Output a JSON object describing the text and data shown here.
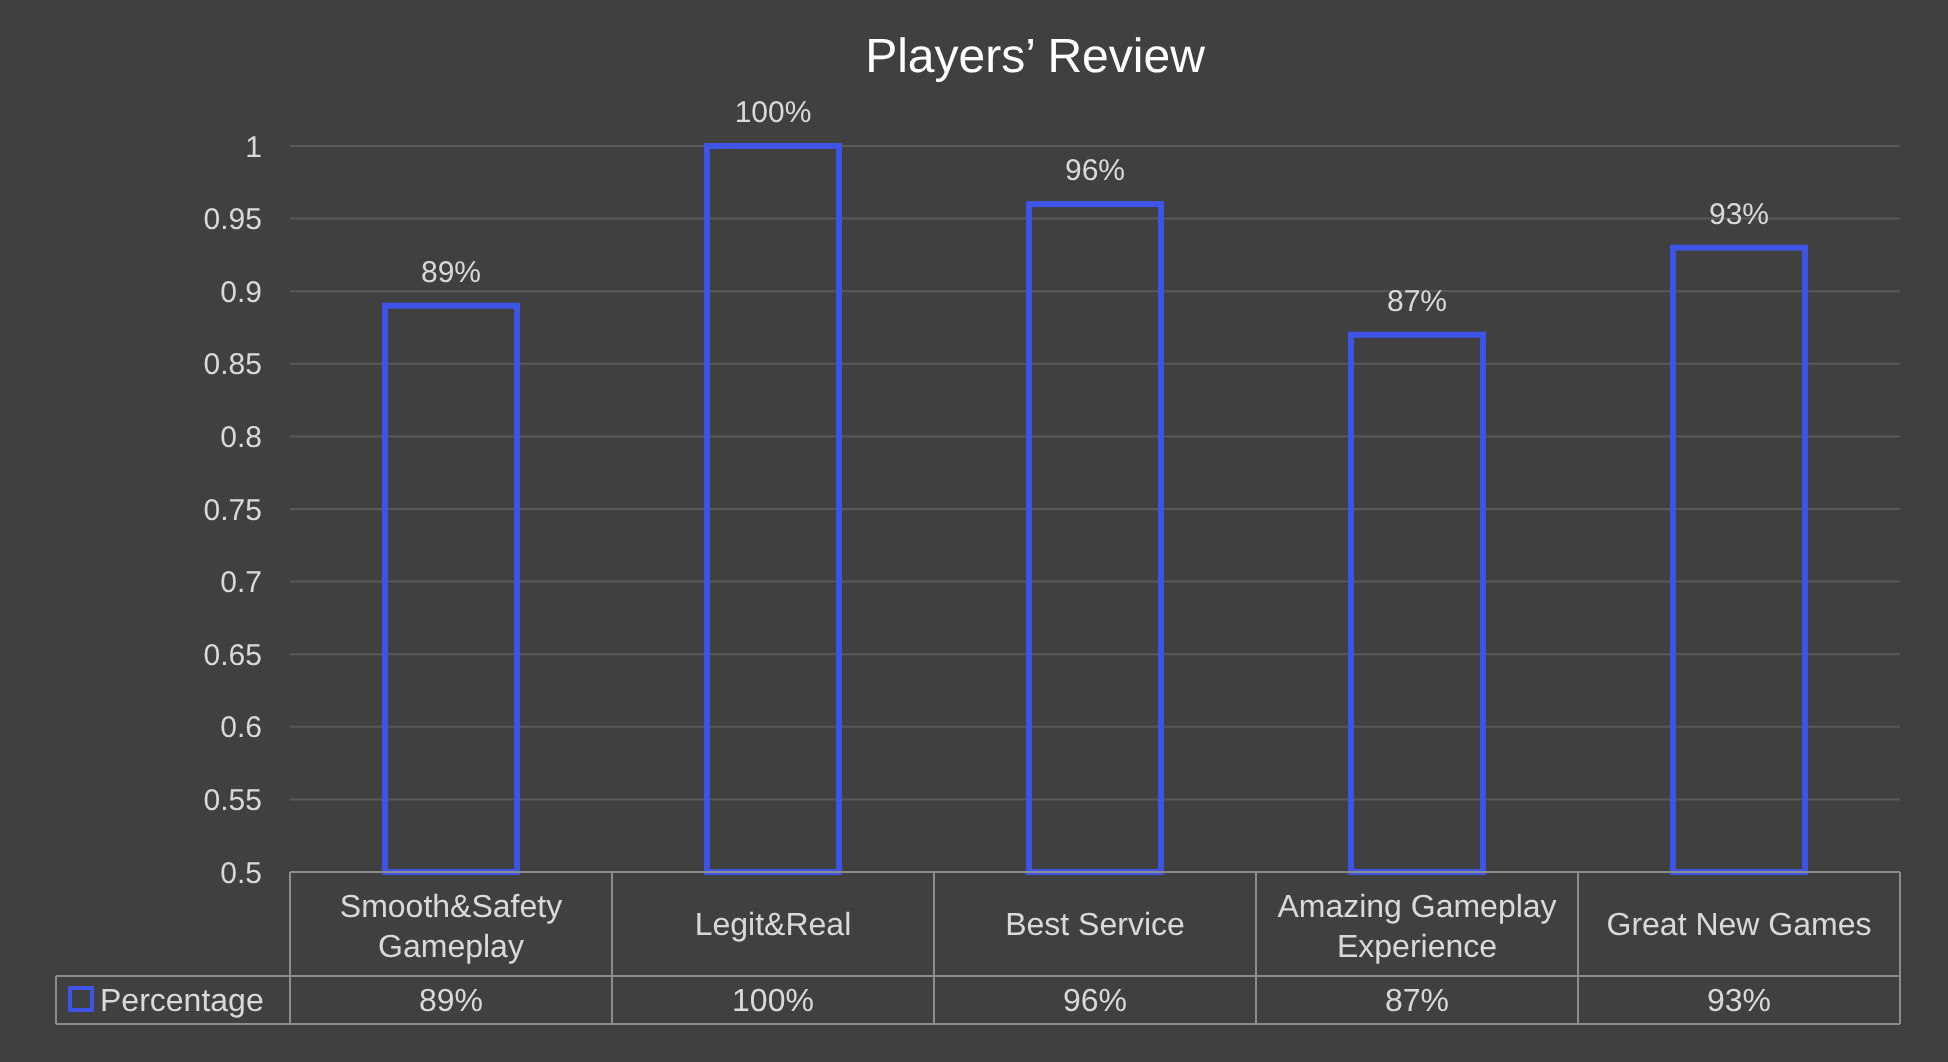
{
  "chart_data": {
    "type": "bar",
    "title": "Players’ Review",
    "categories": [
      "Smooth&Safety Gameplay",
      "Legit&Real",
      "Best Service",
      "Amazing Gameplay Experience",
      "Great New Games"
    ],
    "series": [
      {
        "name": "Percentage",
        "color": "#3d54e6",
        "values": [
          0.89,
          1,
          0.96,
          0.87,
          0.93
        ],
        "value_labels": [
          "89%",
          "100%",
          "96%",
          "87%",
          "93%"
        ]
      }
    ],
    "ylim": [
      0.5,
      1
    ],
    "yticks": [
      0.5,
      0.55,
      0.6,
      0.65,
      0.7,
      0.75,
      0.8,
      0.85,
      0.9,
      0.95,
      1
    ],
    "grid": "y",
    "legend": "bottom"
  }
}
